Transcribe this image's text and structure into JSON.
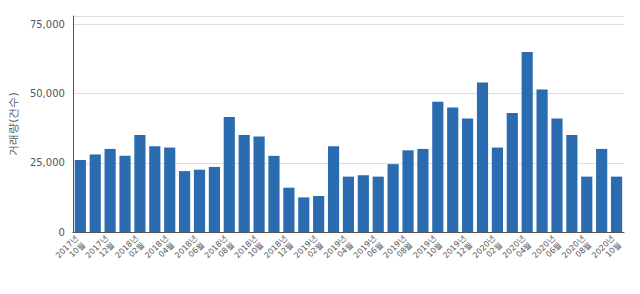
{
  "chart_data": {
    "type": "bar",
    "ylabel": "거래량(건수)",
    "categories": [
      "2017년\n10월",
      null,
      "2017년\n12월",
      null,
      "2018년\n02월",
      null,
      "2018년\n04월",
      null,
      "2018년\n06월",
      null,
      "2018년\n08월",
      null,
      "2018년\n10월",
      null,
      "2018년\n12월",
      null,
      "2019년\n02월",
      null,
      "2019년\n04월",
      null,
      "2019년\n06월",
      null,
      "2019년\n08월",
      null,
      "2019년\n10월",
      null,
      "2019년\n12월",
      null,
      "2020년\n02월",
      null,
      "2020년\n04월",
      null,
      "2020년\n06월",
      null,
      "2020년\n08월",
      null,
      "2020년\n10월"
    ],
    "values": [
      26000,
      28000,
      30000,
      27500,
      35000,
      31000,
      30500,
      22000,
      22500,
      23500,
      41500,
      35000,
      34500,
      27500,
      16000,
      12500,
      13000,
      31000,
      20000,
      20500,
      20000,
      24500,
      29500,
      30000,
      47000,
      45000,
      41000,
      54000,
      30500,
      43000,
      65000,
      51500,
      41000,
      35000,
      20000,
      30000,
      20000
    ],
    "color": "#2b6cb0",
    "ylim": [
      0,
      78000
    ],
    "yticks": [
      0,
      {
        "value": 25000,
        "label": "25,000"
      },
      {
        "value": 50000,
        "label": "50,000"
      },
      {
        "value": 75000,
        "label": "75,000"
      }
    ],
    "grid": true
  }
}
